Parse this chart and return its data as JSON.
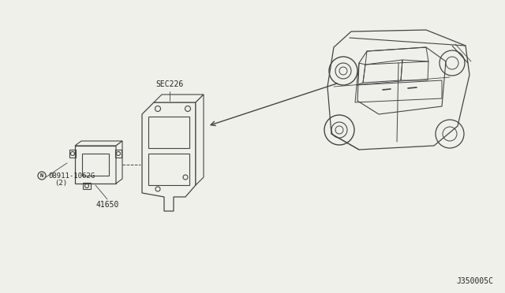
{
  "bg_color": "#f0f0eb",
  "line_color": "#444444",
  "text_color": "#222222",
  "diagram_code": "J350005C",
  "sec_label": "SEC226",
  "part_label_bolt": "08911-1062G",
  "part_label_bolt2": "(2)",
  "part_label_module": "41650"
}
